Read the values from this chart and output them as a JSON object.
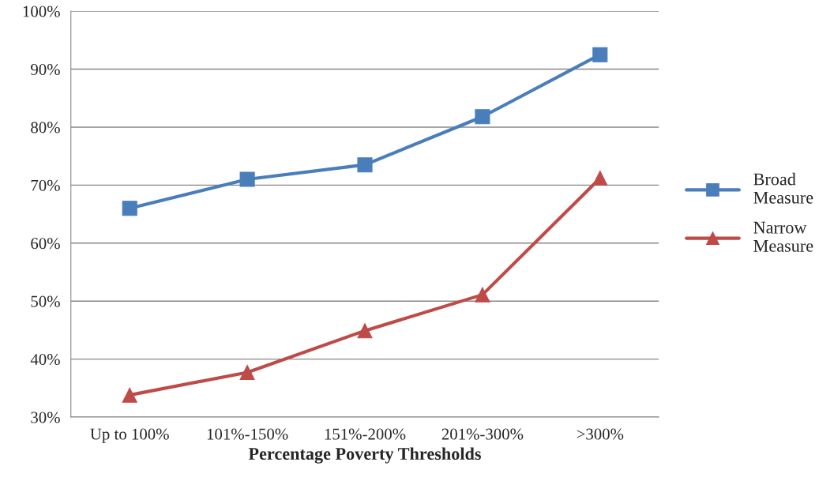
{
  "chart_data": {
    "type": "line",
    "xlabel": "Percentage Poverty Thresholds",
    "categories": [
      "Up to 100%",
      "101%-150%",
      "151%-200%",
      "201%-300%",
      ">300%"
    ],
    "series": [
      {
        "name": "Broad Measure",
        "color": "#4a7ebb",
        "marker": "square",
        "values": [
          66.0,
          71.0,
          73.5,
          81.8,
          92.5
        ]
      },
      {
        "name": "Narrow Measure",
        "color": "#be4b48",
        "marker": "triangle",
        "values": [
          33.8,
          37.7,
          44.9,
          51.1,
          71.2
        ]
      }
    ],
    "ylim": [
      30,
      100
    ],
    "yticks": [
      {
        "value": 30,
        "label": "30%"
      },
      {
        "value": 40,
        "label": "40%"
      },
      {
        "value": 50,
        "label": "50%"
      },
      {
        "value": 60,
        "label": "60%"
      },
      {
        "value": 70,
        "label": "70%"
      },
      {
        "value": 80,
        "label": "80%"
      },
      {
        "value": 90,
        "label": "90%"
      },
      {
        "value": 100,
        "label": "100%"
      }
    ],
    "grid": "y",
    "legend": "right",
    "line_style": "solid"
  }
}
